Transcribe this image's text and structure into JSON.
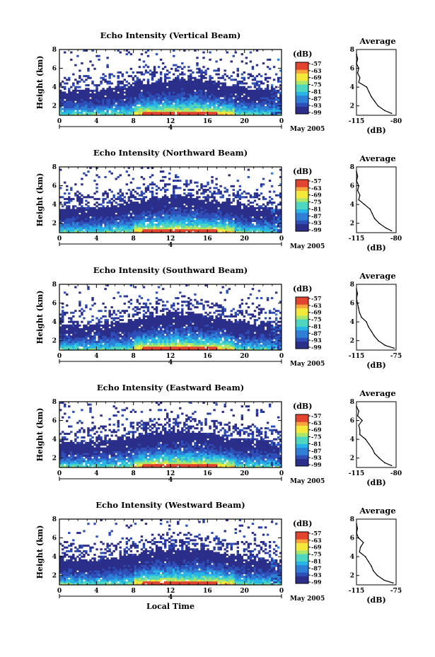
{
  "figure": {
    "date_label": "May 2005",
    "xlabel": "Local Time",
    "ylabel": "Height (km)",
    "avg_title": "Average",
    "avg_xlabel": "(dB)",
    "colorbar_unit": "(dB)",
    "colorbar_ticks": [
      "-57",
      "-63",
      "-69",
      "-75",
      "-81",
      "-87",
      "-93",
      "-99"
    ],
    "day_marker": "4",
    "colors": {
      "background": "#ffffff",
      "colormap": [
        "#2b2f8a",
        "#2e4fb8",
        "#2f7fd6",
        "#27b4e6",
        "#4fd6c0",
        "#a9e66a",
        "#f2e93a",
        "#f6a43b",
        "#e2452f"
      ]
    }
  },
  "chart_data": [
    {
      "type": "heatmap",
      "title": "Echo Intensity (Vertical Beam)",
      "xlabel": "",
      "ylabel": "Height (km)",
      "xlim": [
        0,
        24
      ],
      "ylim": [
        1,
        8
      ],
      "x_ticks": [
        "0",
        "4",
        "8",
        "12",
        "16",
        "20",
        "0"
      ],
      "y_ticks": [
        "2",
        "4",
        "6",
        "8"
      ],
      "colorbar": {
        "unit": "(dB)",
        "range": [
          -99,
          -57
        ],
        "ticks": [
          "-57",
          "-63",
          "-69",
          "-75",
          "-81",
          "-87",
          "-93",
          "-99"
        ]
      },
      "average_profile": {
        "title": "Average",
        "xlabel": "(dB)",
        "x_ticks": [
          "-115",
          "-80"
        ],
        "xlim": [
          -115,
          -80
        ],
        "y_ticks": [
          "2",
          "4",
          "6",
          "8"
        ],
        "height": [
          1.2,
          1.5,
          2.0,
          2.5,
          3.0,
          3.5,
          4.0,
          4.5,
          5.0,
          5.5,
          6.0,
          6.5,
          7.0,
          7.5
        ],
        "db": [
          -84,
          -90,
          -96,
          -99,
          -102,
          -104,
          -106,
          -113,
          -112,
          -114,
          -113,
          -115,
          -114,
          -115
        ]
      }
    },
    {
      "type": "heatmap",
      "title": "Echo Intensity (Northward Beam)",
      "xlabel": "",
      "ylabel": "Height (km)",
      "xlim": [
        0,
        24
      ],
      "ylim": [
        1,
        8
      ],
      "x_ticks": [
        "0",
        "4",
        "8",
        "12",
        "16",
        "20",
        "0"
      ],
      "y_ticks": [
        "2",
        "4",
        "6",
        "8"
      ],
      "colorbar": {
        "unit": "(dB)",
        "range": [
          -99,
          -57
        ],
        "ticks": [
          "-57",
          "-63",
          "-69",
          "-75",
          "-81",
          "-87",
          "-93",
          "-99"
        ]
      },
      "average_profile": {
        "title": "Average",
        "xlabel": "(dB)",
        "x_ticks": [
          "-115",
          "-80"
        ],
        "xlim": [
          -115,
          -80
        ],
        "y_ticks": [
          "2",
          "4",
          "6",
          "8"
        ],
        "height": [
          1.2,
          1.5,
          2.0,
          2.5,
          3.0,
          3.5,
          4.0,
          4.5,
          5.0,
          5.5,
          6.0,
          6.5,
          7.0,
          7.5
        ],
        "db": [
          -84,
          -89,
          -95,
          -99,
          -101,
          -103,
          -108,
          -113,
          -112,
          -114,
          -113,
          -115,
          -114,
          -115
        ]
      }
    },
    {
      "type": "heatmap",
      "title": "Echo Intensity (Southward Beam)",
      "xlabel": "",
      "ylabel": "Height (km)",
      "xlim": [
        0,
        24
      ],
      "ylim": [
        1,
        8
      ],
      "x_ticks": [
        "0",
        "4",
        "8",
        "12",
        "16",
        "20",
        "0"
      ],
      "y_ticks": [
        "2",
        "4",
        "6",
        "8"
      ],
      "colorbar": {
        "unit": "(dB)",
        "range": [
          -99,
          -57
        ],
        "ticks": [
          "-57",
          "-63",
          "-69",
          "-75",
          "-81",
          "-87",
          "-93",
          "-99"
        ]
      },
      "average_profile": {
        "title": "Average",
        "xlabel": "(dB)",
        "x_ticks": [
          "-115",
          "-75"
        ],
        "xlim": [
          -115,
          -75
        ],
        "y_ticks": [
          "2",
          "4",
          "6",
          "8"
        ],
        "height": [
          1.2,
          1.5,
          2.0,
          2.5,
          3.0,
          3.5,
          4.0,
          4.5,
          5.0,
          5.5,
          6.0,
          6.5,
          7.0,
          7.5
        ],
        "db": [
          -77,
          -86,
          -93,
          -97,
          -100,
          -103,
          -105,
          -110,
          -112,
          -113,
          -114,
          -115,
          -114,
          -115
        ]
      }
    },
    {
      "type": "heatmap",
      "title": "Echo Intensity (Eastward Beam)",
      "xlabel": "",
      "ylabel": "Height (km)",
      "xlim": [
        0,
        24
      ],
      "ylim": [
        1,
        8
      ],
      "x_ticks": [
        "0",
        "4",
        "8",
        "12",
        "16",
        "20",
        "0"
      ],
      "y_ticks": [
        "2",
        "4",
        "6",
        "8"
      ],
      "colorbar": {
        "unit": "(dB)",
        "range": [
          -99,
          -57
        ],
        "ticks": [
          "-57",
          "-63",
          "-69",
          "-75",
          "-81",
          "-87",
          "-93",
          "-99"
        ]
      },
      "average_profile": {
        "title": "Average",
        "xlabel": "(dB)",
        "x_ticks": [
          "-115",
          "-80"
        ],
        "xlim": [
          -115,
          -80
        ],
        "y_ticks": [
          "2",
          "4",
          "6",
          "8"
        ],
        "height": [
          1.2,
          1.5,
          2.0,
          2.5,
          3.0,
          3.5,
          4.0,
          4.5,
          5.0,
          5.5,
          6.0,
          6.5,
          7.0,
          7.5
        ],
        "db": [
          -84,
          -90,
          -95,
          -99,
          -101,
          -104,
          -107,
          -112,
          -112,
          -113,
          -110,
          -114,
          -113,
          -115
        ]
      }
    },
    {
      "type": "heatmap",
      "title": "Echo Intensity (Westward Beam)",
      "xlabel": "Local Time",
      "ylabel": "Height (km)",
      "xlim": [
        0,
        24
      ],
      "ylim": [
        1,
        8
      ],
      "x_ticks": [
        "0",
        "4",
        "8",
        "12",
        "16",
        "20",
        "0"
      ],
      "y_ticks": [
        "2",
        "4",
        "6",
        "8"
      ],
      "colorbar": {
        "unit": "(dB)",
        "range": [
          -99,
          -57
        ],
        "ticks": [
          "-57",
          "-63",
          "-69",
          "-75",
          "-81",
          "-87",
          "-93",
          "-99"
        ]
      },
      "average_profile": {
        "title": "Average",
        "xlabel": "(dB)",
        "x_ticks": [
          "-115",
          "-75"
        ],
        "xlim": [
          -115,
          -75
        ],
        "y_ticks": [
          "2",
          "4",
          "6",
          "8"
        ],
        "height": [
          1.2,
          1.5,
          2.0,
          2.5,
          3.0,
          3.5,
          4.0,
          4.5,
          5.0,
          5.5,
          6.0,
          6.5,
          7.0,
          7.5
        ],
        "db": [
          -78,
          -87,
          -94,
          -98,
          -100,
          -103,
          -106,
          -112,
          -111,
          -108,
          -113,
          -115,
          -114,
          -115
        ]
      }
    }
  ]
}
